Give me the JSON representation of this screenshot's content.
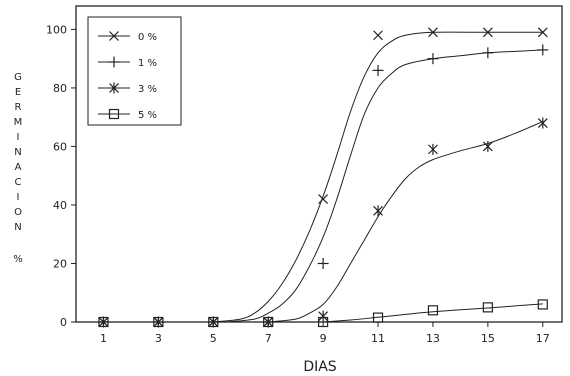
{
  "chart_data": {
    "type": "line",
    "xlabel": "DIAS",
    "ylabel": "GERMINACION %",
    "ylabel_letters": [
      "G",
      "E",
      "R",
      "M",
      "I",
      "N",
      "A",
      "C",
      "I",
      "O",
      "N"
    ],
    "ylabel_unit": "%",
    "xlim": [
      0,
      17.7
    ],
    "ylim": [
      0,
      108
    ],
    "x_ticks": [
      1,
      3,
      5,
      7,
      9,
      11,
      13,
      15,
      17
    ],
    "y_ticks": [
      0,
      20,
      40,
      60,
      80,
      100
    ],
    "legend_position": "top-left",
    "grid": false,
    "series": [
      {
        "name": "0 %",
        "marker": "x",
        "points": [
          [
            1,
            0
          ],
          [
            3,
            0
          ],
          [
            5,
            0
          ],
          [
            7,
            0
          ],
          [
            9,
            42
          ],
          [
            11,
            98
          ],
          [
            13,
            99
          ],
          [
            15,
            99
          ],
          [
            17,
            99
          ]
        ],
        "curve": [
          [
            5,
            0
          ],
          [
            6,
            1
          ],
          [
            6.5,
            3
          ],
          [
            7,
            7
          ],
          [
            7.5,
            13
          ],
          [
            8,
            21
          ],
          [
            8.5,
            31
          ],
          [
            9,
            43
          ],
          [
            9.5,
            57
          ],
          [
            10,
            72
          ],
          [
            10.5,
            84
          ],
          [
            11,
            92
          ],
          [
            11.5,
            96
          ],
          [
            12,
            98
          ],
          [
            13,
            99
          ],
          [
            15,
            99
          ],
          [
            17,
            99
          ]
        ]
      },
      {
        "name": "1 %",
        "marker": "plus",
        "points": [
          [
            1,
            0
          ],
          [
            3,
            0
          ],
          [
            5,
            0
          ],
          [
            7,
            0
          ],
          [
            9,
            20
          ],
          [
            11,
            86
          ],
          [
            13,
            90
          ],
          [
            15,
            92
          ],
          [
            17,
            93
          ]
        ],
        "curve": [
          [
            5.5,
            0
          ],
          [
            6.5,
            1
          ],
          [
            7,
            3
          ],
          [
            7.5,
            6
          ],
          [
            8,
            11
          ],
          [
            8.5,
            19
          ],
          [
            9,
            29
          ],
          [
            9.5,
            42
          ],
          [
            10,
            57
          ],
          [
            10.5,
            71
          ],
          [
            11,
            80
          ],
          [
            11.5,
            85
          ],
          [
            12,
            88
          ],
          [
            13,
            90
          ],
          [
            14,
            91
          ],
          [
            15,
            92
          ],
          [
            16,
            92.5
          ],
          [
            17,
            93
          ]
        ]
      },
      {
        "name": "3 %",
        "marker": "asterisk",
        "points": [
          [
            1,
            0
          ],
          [
            3,
            0
          ],
          [
            5,
            0
          ],
          [
            7,
            0
          ],
          [
            9,
            2
          ],
          [
            11,
            38
          ],
          [
            13,
            59
          ],
          [
            15,
            60
          ],
          [
            17,
            68
          ]
        ],
        "curve": [
          [
            7,
            0
          ],
          [
            8,
            1
          ],
          [
            8.5,
            3
          ],
          [
            9,
            6
          ],
          [
            9.5,
            12
          ],
          [
            10,
            20
          ],
          [
            10.5,
            28
          ],
          [
            11,
            36
          ],
          [
            11.5,
            43
          ],
          [
            12,
            49
          ],
          [
            12.5,
            53
          ],
          [
            13,
            55.5
          ],
          [
            14,
            58.5
          ],
          [
            15,
            61
          ],
          [
            16,
            64.5
          ],
          [
            17,
            68.5
          ]
        ]
      },
      {
        "name": "5 %",
        "marker": "square",
        "points": [
          [
            1,
            0
          ],
          [
            3,
            0
          ],
          [
            5,
            0
          ],
          [
            7,
            0
          ],
          [
            9,
            0
          ],
          [
            11,
            1.5
          ],
          [
            13,
            4
          ],
          [
            15,
            5
          ],
          [
            17,
            6
          ]
        ],
        "curve": [
          [
            9,
            0
          ],
          [
            10,
            0.7
          ],
          [
            11,
            1.6
          ],
          [
            12,
            2.6
          ],
          [
            13,
            3.5
          ],
          [
            14,
            4.2
          ],
          [
            15,
            4.8
          ],
          [
            16,
            5.5
          ],
          [
            17,
            6.2
          ]
        ]
      }
    ]
  }
}
